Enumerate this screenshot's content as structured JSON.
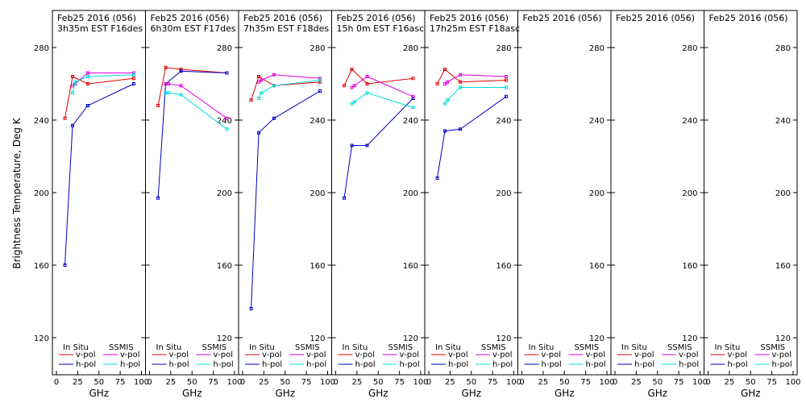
{
  "ylabel": "Brightness Temperature, Deg K",
  "xlabel": "GHz",
  "legend": {
    "insitu_title": "In Situ",
    "ssmis_title": "SSMIS",
    "vpol_label": "v-pol",
    "hpol_label": "h-pol"
  },
  "colors": {
    "insitu_v": "#e00000",
    "insitu_h": "#0000c8",
    "ssmis_v": "#e000e0",
    "ssmis_h": "#00e0e0"
  },
  "chart_data": {
    "type": "line",
    "xlim": [
      0,
      100
    ],
    "ylim": [
      110,
      290
    ],
    "xticks": [
      0,
      25,
      50,
      75,
      100
    ],
    "yticks": [
      120,
      160,
      200,
      240,
      280
    ],
    "grid": false,
    "legend_position": "bottom",
    "panels": [
      {
        "title_line1": "Feb25 2016 (056)",
        "title_line2": "3h35m EST F16des",
        "series": [
          {
            "kind": "insitu_v",
            "x": [
              10,
              19,
              37,
              91
            ],
            "y": [
              241,
              264,
              260,
              263
            ]
          },
          {
            "kind": "insitu_h",
            "x": [
              10,
              19,
              37,
              91
            ],
            "y": [
              160,
              237,
              248,
              260
            ]
          },
          {
            "kind": "ssmis_v",
            "x": [
              19,
              22,
              37,
              91
            ],
            "y": [
              259,
              260,
              266,
              266
            ]
          },
          {
            "kind": "ssmis_h",
            "x": [
              19,
              22,
              37,
              91
            ],
            "y": [
              255,
              261,
              264,
              265
            ]
          }
        ]
      },
      {
        "title_line1": "Feb25 2016 (056)",
        "title_line2": "6h30m EST F17des",
        "series": [
          {
            "kind": "insitu_v",
            "x": [
              10,
              19,
              37,
              91
            ],
            "y": [
              248,
              269,
              268,
              266
            ]
          },
          {
            "kind": "insitu_h",
            "x": [
              10,
              19,
              37,
              91
            ],
            "y": [
              197,
              260,
              267,
              266
            ]
          },
          {
            "kind": "ssmis_v",
            "x": [
              19,
              22,
              37,
              91
            ],
            "y": [
              260,
              260,
              259,
              241
            ]
          },
          {
            "kind": "ssmis_h",
            "x": [
              19,
              22,
              37,
              91
            ],
            "y": [
              255,
              255,
              254,
              235
            ]
          }
        ]
      },
      {
        "title_line1": "Feb25 2016 (056)",
        "title_line2": "7h35m EST F18des",
        "series": [
          {
            "kind": "insitu_v",
            "x": [
              10,
              19,
              37,
              91
            ],
            "y": [
              251,
              264,
              259,
              261
            ]
          },
          {
            "kind": "insitu_h",
            "x": [
              10,
              19,
              37,
              91
            ],
            "y": [
              136,
              233,
              241,
              256
            ]
          },
          {
            "kind": "ssmis_v",
            "x": [
              19,
              22,
              37,
              91
            ],
            "y": [
              261,
              262,
              265,
              263
            ]
          },
          {
            "kind": "ssmis_h",
            "x": [
              19,
              22,
              37,
              91
            ],
            "y": [
              252,
              255,
              259,
              262
            ]
          }
        ]
      },
      {
        "title_line1": "Feb25 2016 (056)",
        "title_line2": "15h 0m EST F16asc",
        "series": [
          {
            "kind": "insitu_v",
            "x": [
              10,
              19,
              37,
              91
            ],
            "y": [
              259,
              268,
              260,
              263
            ]
          },
          {
            "kind": "insitu_h",
            "x": [
              10,
              19,
              37,
              91
            ],
            "y": [
              197,
              226,
              226,
              252
            ]
          },
          {
            "kind": "ssmis_v",
            "x": [
              19,
              22,
              37,
              91
            ],
            "y": [
              258,
              259,
              264,
              253
            ]
          },
          {
            "kind": "ssmis_h",
            "x": [
              19,
              22,
              37,
              91
            ],
            "y": [
              249,
              250,
              255,
              247
            ]
          }
        ]
      },
      {
        "title_line1": "Feb25 2016 (056)",
        "title_line2": "17h25m EST F18asc",
        "series": [
          {
            "kind": "insitu_v",
            "x": [
              10,
              19,
              37,
              91
            ],
            "y": [
              260,
              268,
              261,
              262
            ]
          },
          {
            "kind": "insitu_h",
            "x": [
              10,
              19,
              37,
              91
            ],
            "y": [
              208,
              234,
              235,
              253
            ]
          },
          {
            "kind": "ssmis_v",
            "x": [
              19,
              22,
              37,
              91
            ],
            "y": [
              260,
              261,
              265,
              264
            ]
          },
          {
            "kind": "ssmis_h",
            "x": [
              19,
              22,
              37,
              91
            ],
            "y": [
              249,
              251,
              258,
              258
            ]
          }
        ]
      },
      {
        "title_line1": "Feb25 2016 (056)",
        "title_line2": "",
        "series": []
      },
      {
        "title_line1": "Feb25 2016 (056)",
        "title_line2": "",
        "series": []
      },
      {
        "title_line1": "Feb25 2016 (056)",
        "title_line2": "",
        "series": []
      }
    ]
  }
}
